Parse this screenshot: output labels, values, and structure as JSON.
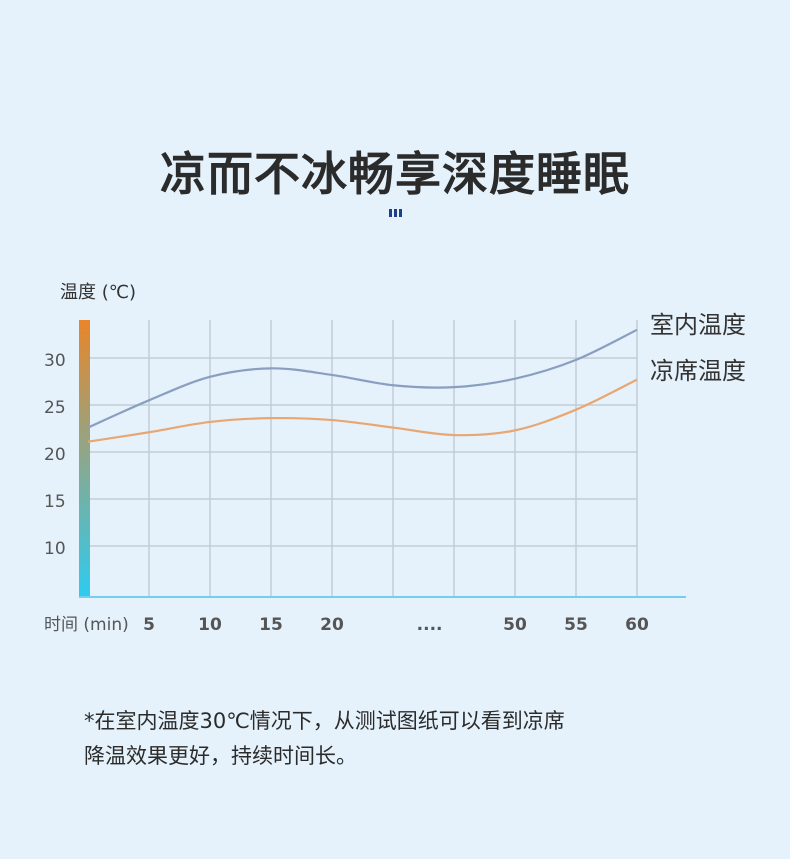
{
  "title": "凉而不冰畅享深度睡眠",
  "chart_data": {
    "type": "line",
    "ylabel": "温度 (℃)",
    "xlabel": "时间 (min)",
    "y_ticks": [
      "30",
      "25",
      "20",
      "15",
      "10"
    ],
    "y_tick_values": [
      30,
      25,
      20,
      15,
      10
    ],
    "x_ticks": [
      "5",
      "10",
      "15",
      "20",
      "....",
      "50",
      "55",
      "60"
    ],
    "ylim": [
      4.5,
      35
    ],
    "grid": true,
    "legend_placement": "right",
    "series": [
      {
        "name": "室内温度",
        "color": "#8a9fc0",
        "values": [
          22.6,
          25.5,
          28.0,
          28.9,
          28.2,
          27.1,
          26.9,
          27.8,
          29.8,
          33.0
        ]
      },
      {
        "name": "凉席温度",
        "color": "#e8a772",
        "values": [
          21.1,
          22.1,
          23.2,
          23.6,
          23.4,
          22.6,
          21.8,
          22.3,
          24.5,
          27.7
        ]
      }
    ],
    "axis_gradient": [
      "#e8852a",
      "#2ecbf0"
    ]
  },
  "footnote": [
    "*在室内温度30℃情况下，从测试图纸可以看到凉席",
    "降温效果更好，持续时间长。"
  ]
}
